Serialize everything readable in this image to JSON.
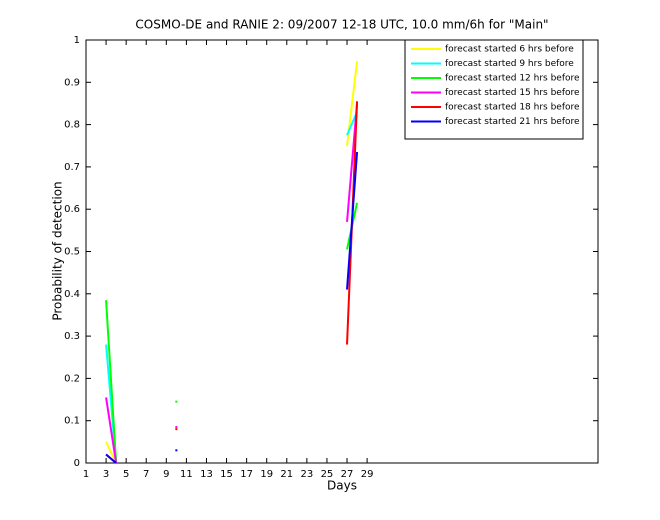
{
  "chart_data": {
    "type": "line",
    "title": "COSMO-DE and RANIE 2: 09/2007 12-18 UTC, 10.0 mm/6h for \"Main\"",
    "x_label": "Days",
    "y_label": "Probability of detection",
    "x": [
      3,
      4,
      10,
      27,
      28
    ],
    "series": [
      {
        "name": "forecast started 6 hrs before",
        "color": "#ffff00",
        "values": [
          0.05,
          0,
          null,
          0.75,
          0.95
        ]
      },
      {
        "name": "forecast started 9 hrs before",
        "color": "#00ffff",
        "values": [
          0.28,
          0,
          null,
          0.775,
          0.83
        ]
      },
      {
        "name": "forecast started 12 hrs before",
        "color": "#00ff00",
        "values": [
          0.385,
          0,
          0.145,
          0.505,
          0.615
        ]
      },
      {
        "name": "forecast started 15 hrs before",
        "color": "#ff00ff",
        "values": [
          0.155,
          0,
          0.085,
          0.57,
          0.85
        ]
      },
      {
        "name": "forecast started 18 hrs before",
        "color": "#ff0000",
        "values": [
          0.02,
          0,
          0.08,
          0.28,
          0.855
        ]
      },
      {
        "name": "forecast started 21 hrs before",
        "color": "#0000ff",
        "values": [
          0.02,
          0,
          0.03,
          0.41,
          0.735
        ]
      }
    ],
    "xlim": [
      1,
      52
    ],
    "xticks": [
      1,
      3,
      5,
      7,
      9,
      11,
      13,
      15,
      17,
      19,
      21,
      23,
      25,
      27,
      29
    ],
    "ylim": [
      0,
      1
    ],
    "yticks": [
      0,
      0.1,
      0.2,
      0.3,
      0.4,
      0.5,
      0.6,
      0.7,
      0.8,
      0.9,
      1
    ],
    "legend": "top-right",
    "grid": false
  }
}
